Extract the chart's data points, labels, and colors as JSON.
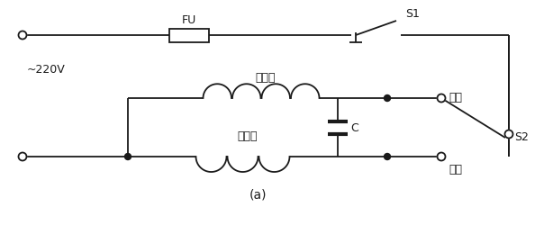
{
  "title": "(a)",
  "label_220v": "~220V",
  "label_FU": "FU",
  "label_S1": "S1",
  "label_S2": "S2",
  "label_main_winding": "主绕组",
  "label_aux_winding": "副绕组",
  "label_C": "C",
  "label_forward": "正转",
  "label_reverse": "反转",
  "bg_color": "#ffffff",
  "line_color": "#1a1a1a",
  "linewidth": 1.3
}
